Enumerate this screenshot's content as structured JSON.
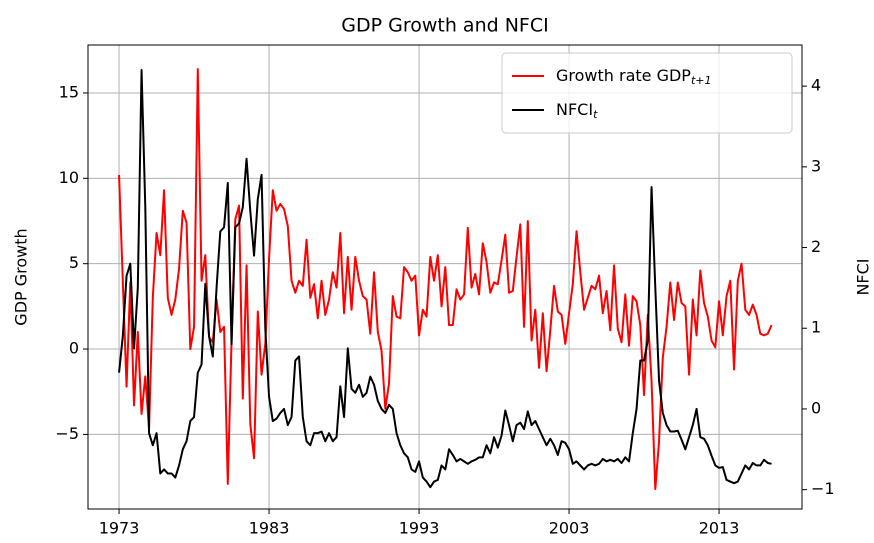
{
  "chart_data": {
    "type": "line",
    "title": "GDP Growth and NFCI",
    "ylabel": "GDP Growth",
    "y2label": "NFCI",
    "x": [
      1973,
      1973.25,
      1973.5,
      1973.75,
      1974,
      1974.25,
      1974.5,
      1974.75,
      1975,
      1975.25,
      1975.5,
      1975.75,
      1976,
      1976.25,
      1976.5,
      1976.75,
      1977,
      1977.25,
      1977.5,
      1977.75,
      1978,
      1978.25,
      1978.5,
      1978.75,
      1979,
      1979.25,
      1979.5,
      1979.75,
      1980,
      1980.25,
      1980.5,
      1980.75,
      1981,
      1981.25,
      1981.5,
      1981.75,
      1982,
      1982.25,
      1982.5,
      1982.75,
      1983,
      1983.25,
      1983.5,
      1983.75,
      1984,
      1984.25,
      1984.5,
      1984.75,
      1985,
      1985.25,
      1985.5,
      1985.75,
      1986,
      1986.25,
      1986.5,
      1986.75,
      1987,
      1987.25,
      1987.5,
      1987.75,
      1988,
      1988.25,
      1988.5,
      1988.75,
      1989,
      1989.25,
      1989.5,
      1989.75,
      1990,
      1990.25,
      1990.5,
      1990.75,
      1991,
      1991.25,
      1991.5,
      1991.75,
      1992,
      1992.25,
      1992.5,
      1992.75,
      1993,
      1993.25,
      1993.5,
      1993.75,
      1994,
      1994.25,
      1994.5,
      1994.75,
      1995,
      1995.25,
      1995.5,
      1995.75,
      1996,
      1996.25,
      1996.5,
      1996.75,
      1997,
      1997.25,
      1997.5,
      1997.75,
      1998,
      1998.25,
      1998.5,
      1998.75,
      1999,
      1999.25,
      1999.5,
      1999.75,
      2000,
      2000.25,
      2000.5,
      2000.75,
      2001,
      2001.25,
      2001.5,
      2001.75,
      2002,
      2002.25,
      2002.5,
      2002.75,
      2003,
      2003.25,
      2003.5,
      2003.75,
      2004,
      2004.25,
      2004.5,
      2004.75,
      2005,
      2005.25,
      2005.5,
      2005.75,
      2006,
      2006.25,
      2006.5,
      2006.75,
      2007,
      2007.25,
      2007.5,
      2007.75,
      2008,
      2008.25,
      2008.5,
      2008.75,
      2009,
      2009.25,
      2009.5,
      2009.75,
      2010,
      2010.25,
      2010.5,
      2010.75,
      2011,
      2011.25,
      2011.5,
      2011.75,
      2012,
      2012.25,
      2012.5,
      2012.75,
      2013,
      2013.25,
      2013.5,
      2013.75,
      2014,
      2014.25,
      2014.5,
      2014.75,
      2015,
      2015.25,
      2015.5,
      2015.75,
      2016,
      2016.25,
      2016.5
    ],
    "series": [
      {
        "name": "Growth rate GDP",
        "name_subscript": "t+1",
        "color": "#ff0000",
        "axis": "y",
        "values": [
          10.2,
          4.0,
          -2.2,
          3.9,
          -3.3,
          1.0,
          -3.8,
          -1.6,
          -4.7,
          3.0,
          6.8,
          5.5,
          9.3,
          3.0,
          2.0,
          2.9,
          4.7,
          8.1,
          7.4,
          0.0,
          1.3,
          16.4,
          4.0,
          5.5,
          0.7,
          0.4,
          2.9,
          1.0,
          1.3,
          -7.9,
          0.5,
          7.6,
          8.4,
          -2.9,
          4.9,
          -4.4,
          -6.4,
          2.2,
          -1.5,
          0.3,
          5.3,
          9.3,
          8.1,
          8.5,
          8.2,
          7.2,
          4.0,
          3.3,
          4.0,
          3.7,
          6.4,
          3.0,
          3.8,
          1.8,
          4.0,
          2.0,
          2.9,
          4.5,
          3.6,
          6.8,
          2.1,
          5.4,
          2.3,
          5.4,
          4.0,
          3.1,
          2.9,
          0.9,
          4.5,
          1.0,
          -0.1,
          -3.5,
          -2.0,
          3.1,
          1.9,
          1.8,
          4.8,
          4.5,
          4.0,
          4.3,
          0.8,
          2.3,
          1.9,
          5.4,
          4.0,
          5.5,
          2.5,
          4.8,
          1.4,
          1.4,
          3.5,
          2.9,
          3.2,
          7.1,
          3.6,
          4.4,
          3.2,
          6.2,
          5.1,
          3.3,
          3.9,
          3.8,
          5.2,
          6.7,
          3.3,
          3.4,
          5.4,
          7.3,
          1.3,
          7.5,
          0.5,
          2.3,
          -1.1,
          2.1,
          -1.3,
          1.1,
          3.7,
          2.2,
          2.0,
          0.3,
          2.1,
          3.8,
          6.9,
          4.5,
          2.3,
          3.0,
          3.7,
          3.5,
          4.3,
          2.1,
          3.4,
          1.1,
          4.9,
          1.2,
          0.4,
          3.2,
          0.2,
          3.1,
          2.8,
          1.4,
          -2.7,
          2.0,
          -1.9,
          -8.2,
          -5.4,
          -0.5,
          1.3,
          3.9,
          1.7,
          3.9,
          2.7,
          2.5,
          -1.5,
          2.9,
          0.8,
          4.6,
          2.7,
          1.9,
          0.5,
          0.1,
          2.8,
          0.8,
          3.1,
          4.0,
          -1.2,
          4.0,
          5.0,
          2.3,
          2.0,
          2.6,
          2.0,
          0.9,
          0.8,
          0.9,
          1.4
        ]
      },
      {
        "name": "NFCI",
        "name_subscript": "t",
        "color": "#000000",
        "axis": "y2",
        "values": [
          0.45,
          0.9,
          1.65,
          1.8,
          0.75,
          1.5,
          4.2,
          2.5,
          -0.3,
          -0.45,
          -0.3,
          -0.8,
          -0.75,
          -0.8,
          -0.8,
          -0.85,
          -0.7,
          -0.5,
          -0.4,
          -0.15,
          -0.1,
          0.45,
          0.55,
          1.55,
          0.9,
          0.65,
          1.5,
          2.2,
          2.25,
          2.8,
          0.8,
          2.25,
          2.3,
          2.5,
          3.1,
          2.45,
          1.9,
          2.6,
          2.9,
          1.0,
          0.15,
          -0.15,
          -0.12,
          -0.05,
          0.0,
          -0.2,
          -0.1,
          0.6,
          0.65,
          -0.1,
          -0.4,
          -0.45,
          -0.3,
          -0.3,
          -0.28,
          -0.4,
          -0.3,
          -0.4,
          -0.35,
          0.28,
          -0.1,
          0.75,
          0.25,
          0.2,
          0.3,
          0.15,
          0.2,
          0.4,
          0.3,
          0.1,
          0.0,
          -0.05,
          0.05,
          0.0,
          -0.3,
          -0.45,
          -0.55,
          -0.6,
          -0.75,
          -0.78,
          -0.65,
          -0.85,
          -0.9,
          -0.97,
          -0.9,
          -0.88,
          -0.7,
          -0.75,
          -0.5,
          -0.57,
          -0.65,
          -0.62,
          -0.65,
          -0.68,
          -0.65,
          -0.63,
          -0.6,
          -0.6,
          -0.45,
          -0.55,
          -0.35,
          -0.48,
          -0.33,
          -0.02,
          -0.2,
          -0.4,
          -0.2,
          -0.17,
          -0.25,
          -0.03,
          -0.2,
          -0.15,
          -0.25,
          -0.35,
          -0.45,
          -0.37,
          -0.45,
          -0.57,
          -0.4,
          -0.42,
          -0.5,
          -0.68,
          -0.65,
          -0.7,
          -0.75,
          -0.7,
          -0.68,
          -0.7,
          -0.68,
          -0.62,
          -0.65,
          -0.63,
          -0.65,
          -0.62,
          -0.67,
          -0.6,
          -0.65,
          -0.3,
          0.0,
          0.6,
          0.6,
          0.85,
          2.75,
          1.5,
          0.35,
          -0.05,
          -0.2,
          -0.28,
          -0.28,
          -0.27,
          -0.38,
          -0.5,
          -0.35,
          -0.2,
          0.0,
          -0.35,
          -0.37,
          -0.45,
          -0.58,
          -0.7,
          -0.73,
          -0.72,
          -0.88,
          -0.9,
          -0.92,
          -0.9,
          -0.8,
          -0.7,
          -0.75,
          -0.67,
          -0.7,
          -0.7,
          -0.63,
          -0.67,
          -0.68
        ]
      }
    ],
    "xlim": [
      1970.93,
      2018.53
    ],
    "xticks": [
      1973,
      1983,
      1993,
      2003,
      2013
    ],
    "ylim": [
      -9.37,
      17.81
    ],
    "yticks": [
      {
        "value": -5,
        "label": "−5"
      },
      0,
      5,
      10,
      15
    ],
    "y2lim": [
      -1.24,
      4.51
    ],
    "y2ticks": [
      {
        "value": -1,
        "label": "−1"
      },
      0,
      1,
      2,
      3,
      4
    ],
    "grid": true,
    "legend_loc": "upper right"
  }
}
